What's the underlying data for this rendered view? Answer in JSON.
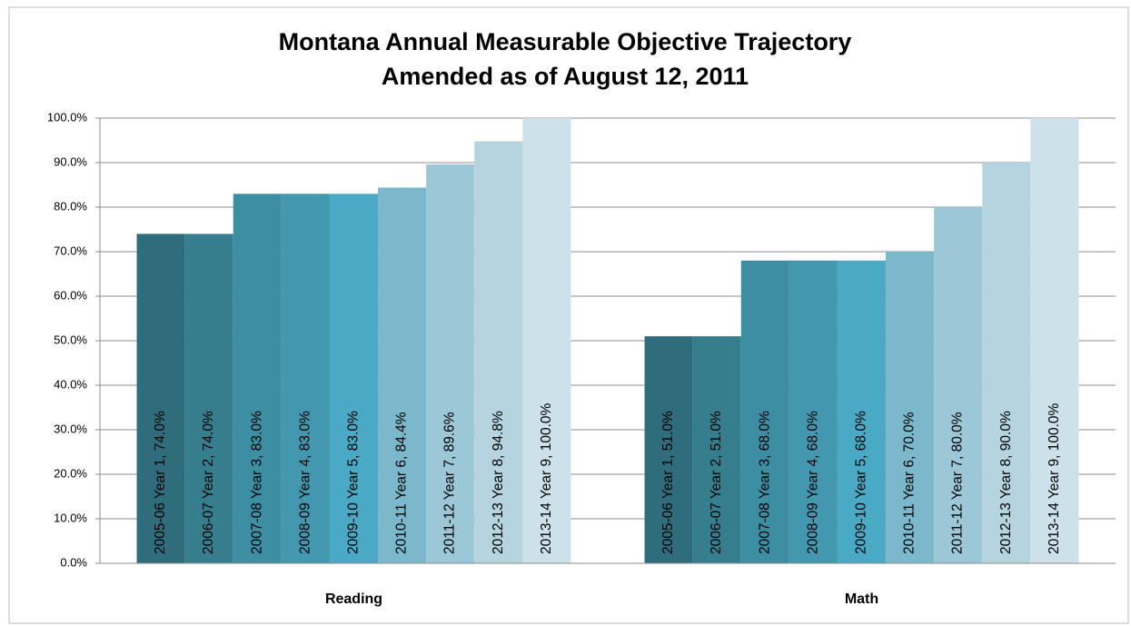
{
  "chart_data": {
    "type": "bar",
    "title": "Montana Annual Measurable Objective Trajectory",
    "subtitle": "Amended as of August 12, 2011",
    "categories": [
      "Reading",
      "Math"
    ],
    "series": [
      {
        "name": "2005-06 Year 1",
        "color": "#2f6d7c",
        "values": [
          74,
          51
        ],
        "value_labels": [
          "74.0%",
          "51.0%"
        ]
      },
      {
        "name": "2006-07 Year 2",
        "color": "#367e8e",
        "values": [
          74,
          51
        ],
        "value_labels": [
          "74.0%",
          "51.0%"
        ]
      },
      {
        "name": "2007-08 Year 3",
        "color": "#3d8ea3",
        "values": [
          83,
          68
        ],
        "value_labels": [
          "83.0%",
          "68.0%"
        ]
      },
      {
        "name": "2008-09 Year 4",
        "color": "#4398b0",
        "values": [
          83,
          68
        ],
        "value_labels": [
          "83.0%",
          "68.0%"
        ]
      },
      {
        "name": "2009-10 Year 5",
        "color": "#4aa9c5",
        "values": [
          83,
          68
        ],
        "value_labels": [
          "83.0%",
          "68.0%"
        ]
      },
      {
        "name": "2010-11 Year 6",
        "color": "#7bb8cc",
        "values": [
          84.4,
          70
        ],
        "value_labels": [
          "84.4%",
          "70.0%"
        ]
      },
      {
        "name": "2011-12 Year 7",
        "color": "#9bc7d6",
        "values": [
          89.6,
          80
        ],
        "value_labels": [
          "89.6%",
          "80.0%"
        ]
      },
      {
        "name": "2012-13 Year 8",
        "color": "#b5d4e0",
        "values": [
          94.8,
          90
        ],
        "value_labels": [
          "94.8%",
          "90.0%"
        ]
      },
      {
        "name": "2013-14 Year 9",
        "color": "#cde1ea",
        "values": [
          100,
          100
        ],
        "value_labels": [
          "100.0%",
          "100.0%"
        ]
      }
    ],
    "ylim": [
      0,
      100
    ],
    "yticks": [
      {
        "value": 0,
        "label": "0.0%"
      },
      {
        "value": 10,
        "label": "10.0%"
      },
      {
        "value": 20,
        "label": "20.0%"
      },
      {
        "value": 30,
        "label": "30.0%"
      },
      {
        "value": 40,
        "label": "40.0%"
      },
      {
        "value": 50,
        "label": "50.0%"
      },
      {
        "value": 60,
        "label": "60.0%"
      },
      {
        "value": 70,
        "label": "70.0%"
      },
      {
        "value": 80,
        "label": "80.0%"
      },
      {
        "value": 90,
        "label": "90.0%"
      },
      {
        "value": 100,
        "label": "100.0%"
      }
    ],
    "grid": true
  }
}
